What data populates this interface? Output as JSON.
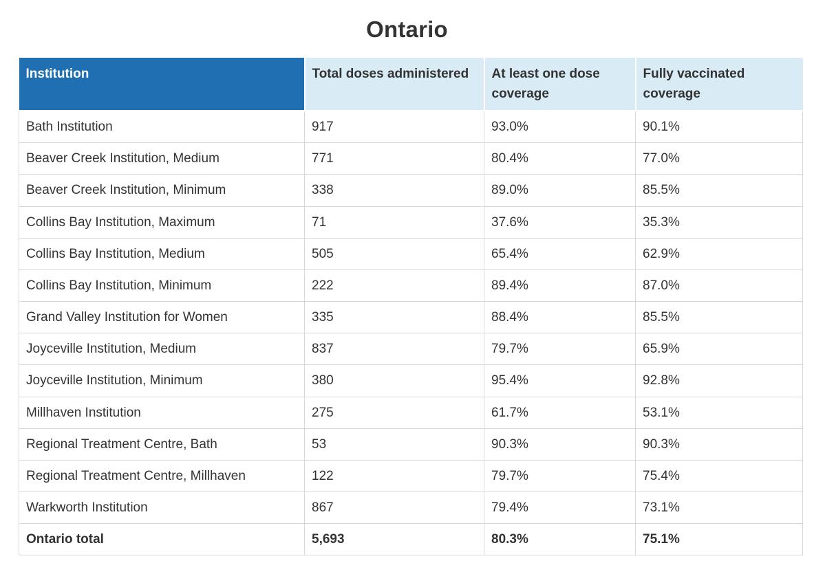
{
  "title": "Ontario",
  "colors": {
    "header_primary_bg": "#1f6fb2",
    "header_primary_text": "#ffffff",
    "header_secondary_bg": "#d9ecf6",
    "body_text": "#333333",
    "border_color": "#d8d8d8"
  },
  "table": {
    "columns": [
      {
        "label": "Institution"
      },
      {
        "label": "Total doses administered"
      },
      {
        "label": "At least one dose coverage"
      },
      {
        "label": "Fully vaccinated coverage"
      }
    ],
    "rows": [
      [
        "Bath Institution",
        "917",
        "93.0%",
        "90.1%"
      ],
      [
        "Beaver Creek Institution, Medium",
        "771",
        "80.4%",
        "77.0%"
      ],
      [
        "Beaver Creek Institution, Minimum",
        "338",
        "89.0%",
        "85.5%"
      ],
      [
        "Collins Bay Institution, Maximum",
        "71",
        "37.6%",
        "35.3%"
      ],
      [
        "Collins Bay Institution, Medium",
        "505",
        "65.4%",
        "62.9%"
      ],
      [
        "Collins Bay Institution, Minimum",
        "222",
        "89.4%",
        "87.0%"
      ],
      [
        "Grand Valley Institution for Women",
        "335",
        "88.4%",
        "85.5%"
      ],
      [
        "Joyceville Institution, Medium",
        "837",
        "79.7%",
        "65.9%"
      ],
      [
        "Joyceville Institution, Minimum",
        "380",
        "95.4%",
        "92.8%"
      ],
      [
        "Millhaven Institution",
        "275",
        "61.7%",
        "53.1%"
      ],
      [
        "Regional Treatment Centre, Bath",
        "53",
        "90.3%",
        "90.3%"
      ],
      [
        "Regional Treatment Centre, Millhaven",
        "122",
        "79.7%",
        "75.4%"
      ],
      [
        "Warkworth Institution",
        "867",
        "79.4%",
        "73.1%"
      ]
    ],
    "total_row": [
      "Ontario total",
      "5,693",
      "80.3%",
      "75.1%"
    ]
  },
  "chart_data": {
    "type": "table",
    "title": "Ontario",
    "columns": [
      "Institution",
      "Total doses administered",
      "At least one dose coverage",
      "Fully vaccinated coverage"
    ],
    "rows": [
      {
        "institution": "Bath Institution",
        "total_doses": 917,
        "one_dose_coverage_pct": 93.0,
        "fully_vaccinated_pct": 90.1
      },
      {
        "institution": "Beaver Creek Institution, Medium",
        "total_doses": 771,
        "one_dose_coverage_pct": 80.4,
        "fully_vaccinated_pct": 77.0
      },
      {
        "institution": "Beaver Creek Institution, Minimum",
        "total_doses": 338,
        "one_dose_coverage_pct": 89.0,
        "fully_vaccinated_pct": 85.5
      },
      {
        "institution": "Collins Bay Institution, Maximum",
        "total_doses": 71,
        "one_dose_coverage_pct": 37.6,
        "fully_vaccinated_pct": 35.3
      },
      {
        "institution": "Collins Bay Institution, Medium",
        "total_doses": 505,
        "one_dose_coverage_pct": 65.4,
        "fully_vaccinated_pct": 62.9
      },
      {
        "institution": "Collins Bay Institution, Minimum",
        "total_doses": 222,
        "one_dose_coverage_pct": 89.4,
        "fully_vaccinated_pct": 87.0
      },
      {
        "institution": "Grand Valley Institution for Women",
        "total_doses": 335,
        "one_dose_coverage_pct": 88.4,
        "fully_vaccinated_pct": 85.5
      },
      {
        "institution": "Joyceville Institution, Medium",
        "total_doses": 837,
        "one_dose_coverage_pct": 79.7,
        "fully_vaccinated_pct": 65.9
      },
      {
        "institution": "Joyceville Institution, Minimum",
        "total_doses": 380,
        "one_dose_coverage_pct": 95.4,
        "fully_vaccinated_pct": 92.8
      },
      {
        "institution": "Millhaven Institution",
        "total_doses": 275,
        "one_dose_coverage_pct": 61.7,
        "fully_vaccinated_pct": 53.1
      },
      {
        "institution": "Regional Treatment Centre, Bath",
        "total_doses": 53,
        "one_dose_coverage_pct": 90.3,
        "fully_vaccinated_pct": 90.3
      },
      {
        "institution": "Regional Treatment Centre, Millhaven",
        "total_doses": 122,
        "one_dose_coverage_pct": 79.7,
        "fully_vaccinated_pct": 75.4
      },
      {
        "institution": "Warkworth Institution",
        "total_doses": 867,
        "one_dose_coverage_pct": 79.4,
        "fully_vaccinated_pct": 73.1
      }
    ],
    "total": {
      "institution": "Ontario total",
      "total_doses": 5693,
      "one_dose_coverage_pct": 80.3,
      "fully_vaccinated_pct": 75.1
    }
  }
}
